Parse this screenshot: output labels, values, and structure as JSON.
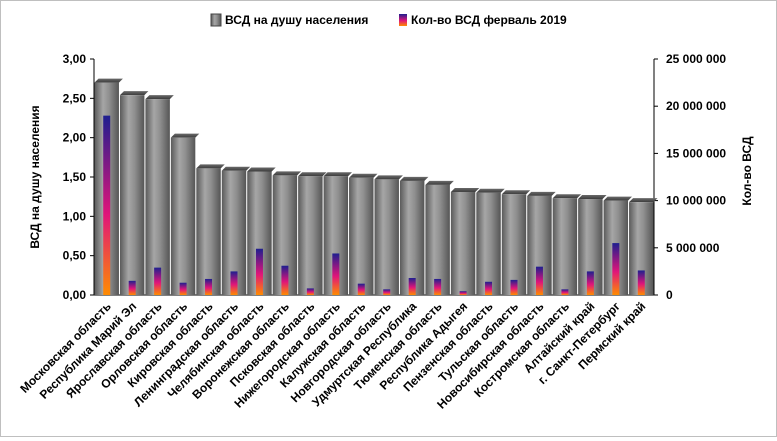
{
  "chart_data": {
    "type": "bar",
    "categories": [
      "Московская область",
      "Республика Марий Эл",
      "Ярославская область",
      "Орловская область",
      "Кировская область",
      "Ленинградская область",
      "Челябинская область",
      "Воронежская область",
      "Псковская область",
      "Нижегородская область",
      "Калужская область",
      "Новгородская область",
      "Удмуртская Республика",
      "Тюменская область",
      "Республика Адыгея",
      "Пензенская область",
      "Тульская область",
      "Новосибирская область",
      "Костромская область",
      "Алтайский край",
      "г. Санкт-Петербург",
      "Пермский край"
    ],
    "series": [
      {
        "name": "ВСД на душу населения",
        "axis": "left",
        "color": "#7f7f7f",
        "values": [
          2.7,
          2.54,
          2.49,
          2.0,
          1.61,
          1.58,
          1.57,
          1.52,
          1.51,
          1.51,
          1.49,
          1.47,
          1.45,
          1.4,
          1.31,
          1.3,
          1.28,
          1.26,
          1.23,
          1.22,
          1.2,
          1.18
        ]
      },
      {
        "name": "Кол-во ВСД ферваль 2019",
        "axis": "right",
        "color_top": "#1f1f8f",
        "color_mid": "#e0157a",
        "color_bottom": "#ff8c00",
        "values": [
          19000000,
          1500000,
          2900000,
          1300000,
          1700000,
          2500000,
          4900000,
          3100000,
          700000,
          4400000,
          1200000,
          600000,
          1800000,
          1700000,
          400000,
          1400000,
          1600000,
          3000000,
          600000,
          2500000,
          5500000,
          2600000
        ]
      }
    ],
    "ylabel": "ВСД на душу населения",
    "y2label": "Кол-во ВСД",
    "ylim": [
      0,
      3
    ],
    "y2lim": [
      0,
      25000000
    ],
    "yticks": [
      "0,00",
      "0,50",
      "1,00",
      "1,50",
      "2,00",
      "2,50",
      "3,00"
    ],
    "y2ticks": [
      "0",
      "5 000 000",
      "10 000 000",
      "15 000 000",
      "20 000 000",
      "25 000 000"
    ],
    "grid": false,
    "legend_position": "top"
  }
}
